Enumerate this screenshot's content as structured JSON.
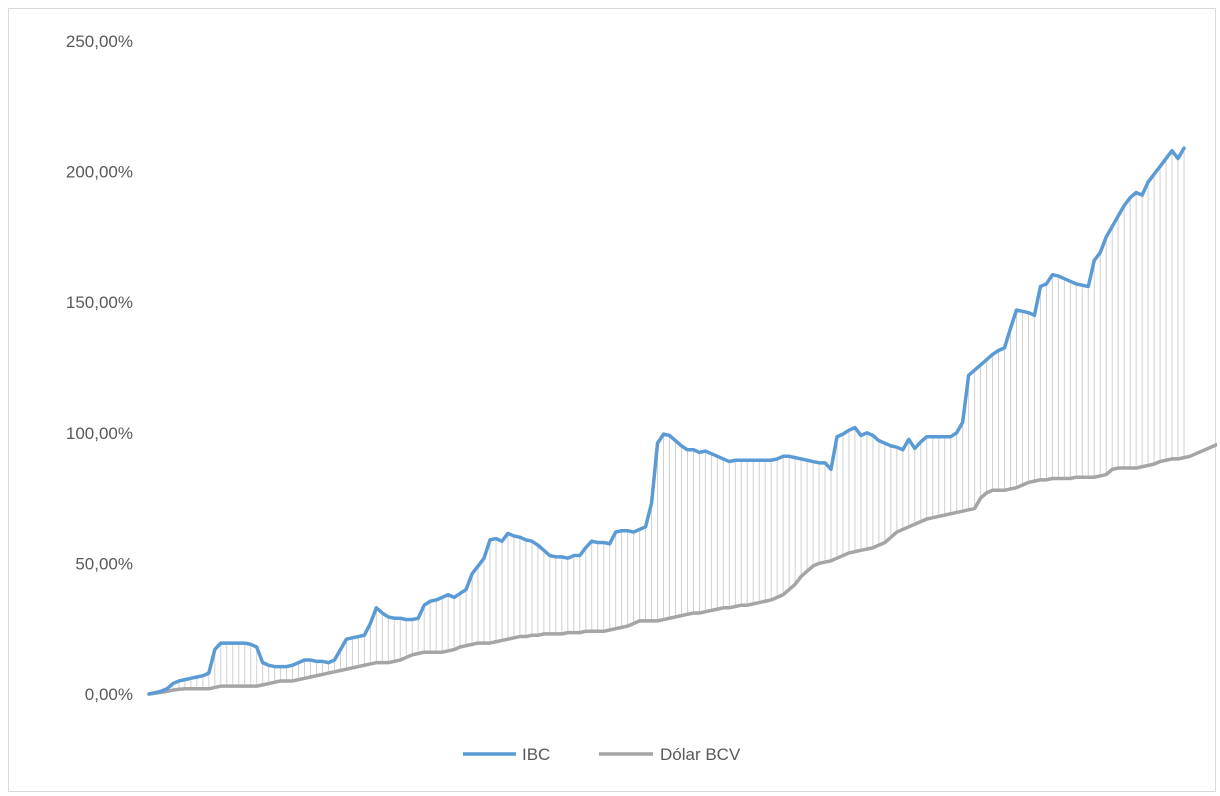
{
  "chart_data": {
    "type": "line",
    "y_format": "percent_comma",
    "ylim": [
      0,
      250
    ],
    "y_ticks": [
      {
        "value": 0,
        "label": "0,00%"
      },
      {
        "value": 50,
        "label": "50,00%"
      },
      {
        "value": 100,
        "label": "100,00%"
      },
      {
        "value": 150,
        "label": "150,00%"
      },
      {
        "value": 200,
        "label": "200,00%"
      },
      {
        "value": 250,
        "label": "250,00%"
      }
    ],
    "grid": false,
    "drop_lines": true,
    "legend": {
      "position": "bottom"
    },
    "series": [
      {
        "name": "IBC",
        "color": "#5b9bd5",
        "values": [
          0,
          0.5,
          1,
          2,
          4,
          5,
          5.5,
          6,
          6.5,
          7,
          8,
          17,
          19.5,
          19.5,
          19.5,
          19.5,
          19.5,
          19,
          18,
          12,
          11,
          10.5,
          10.5,
          10.5,
          11,
          12,
          13,
          13,
          12.5,
          12.5,
          12,
          13,
          17,
          21,
          21.5,
          22,
          22.5,
          27,
          33,
          31,
          29.5,
          29,
          29,
          28.5,
          28.5,
          29,
          34,
          35.5,
          36,
          37,
          38,
          37,
          38.5,
          40,
          46,
          49,
          52,
          59,
          59.5,
          58.5,
          61.5,
          60.5,
          60,
          59,
          58.5,
          57,
          55,
          53,
          52.5,
          52.5,
          52,
          53,
          53,
          56,
          58.5,
          58,
          58,
          57.5,
          62,
          62.5,
          62.5,
          62,
          63,
          64,
          73,
          96,
          99.5,
          99,
          97,
          95,
          93.5,
          93.5,
          92.5,
          93,
          92,
          91,
          90,
          89,
          89.5,
          89.5,
          89.5,
          89.5,
          89.5,
          89.5,
          89.5,
          90,
          91,
          91,
          90.5,
          90,
          89.5,
          89,
          88.5,
          88.5,
          86,
          98.5,
          99.5,
          101,
          102,
          99,
          100,
          99,
          97,
          96,
          95,
          94.5,
          93.5,
          97.5,
          94,
          96.5,
          98.5,
          98.5,
          98.5,
          98.5,
          98.5,
          100,
          104,
          122,
          124,
          126,
          128,
          130,
          131.5,
          132.5,
          140,
          147,
          146.5,
          146,
          145,
          156,
          157,
          160.5,
          160,
          159,
          158,
          157,
          156.5,
          156,
          166,
          169,
          175,
          179,
          183,
          187,
          190,
          192,
          191,
          196,
          199,
          202,
          205,
          208,
          205,
          209
        ]
      },
      {
        "name": "Dólar BCV",
        "color": "#a5a5a5",
        "values": [
          0,
          0.3,
          0.6,
          1,
          1.5,
          1.8,
          2,
          2,
          2,
          2,
          2,
          2.5,
          3,
          3,
          3,
          3,
          3,
          3,
          3,
          3.5,
          4,
          4.5,
          5,
          5,
          5,
          5.5,
          6,
          6.5,
          7,
          7.5,
          8,
          8.5,
          9,
          9.5,
          10,
          10.5,
          11,
          11.5,
          12,
          12,
          12,
          12.5,
          13,
          14,
          15,
          15.5,
          16,
          16,
          16,
          16,
          16.5,
          17,
          18,
          18.5,
          19,
          19.5,
          19.5,
          19.5,
          20,
          20.5,
          21,
          21.5,
          22,
          22,
          22.5,
          22.5,
          23,
          23,
          23,
          23,
          23.5,
          23.5,
          23.5,
          24,
          24,
          24,
          24,
          24.5,
          25,
          25.5,
          26,
          27,
          28,
          28,
          28,
          28,
          28.5,
          29,
          29.5,
          30,
          30.5,
          31,
          31,
          31.5,
          32,
          32.5,
          33,
          33,
          33.5,
          34,
          34,
          34.5,
          35,
          35.5,
          36,
          37,
          38,
          40,
          42,
          45,
          47,
          49,
          50,
          50.5,
          51,
          52,
          53,
          54,
          54.5,
          55,
          55.5,
          56,
          57,
          58,
          60,
          62,
          63,
          64,
          65,
          66,
          67,
          67.5,
          68,
          68.5,
          69,
          69.5,
          70,
          70.5,
          71,
          75,
          77,
          78,
          78,
          78,
          78.5,
          79,
          80,
          81,
          81.5,
          82,
          82,
          82.5,
          82.5,
          82.5,
          82.5,
          83,
          83,
          83,
          83,
          83.5,
          84,
          86,
          86.5,
          86.5,
          86.5,
          86.5,
          87,
          87.5,
          88,
          89,
          89.5,
          90,
          90,
          90.5,
          91,
          92,
          93,
          94,
          95,
          96,
          97,
          98,
          100
        ]
      }
    ]
  }
}
